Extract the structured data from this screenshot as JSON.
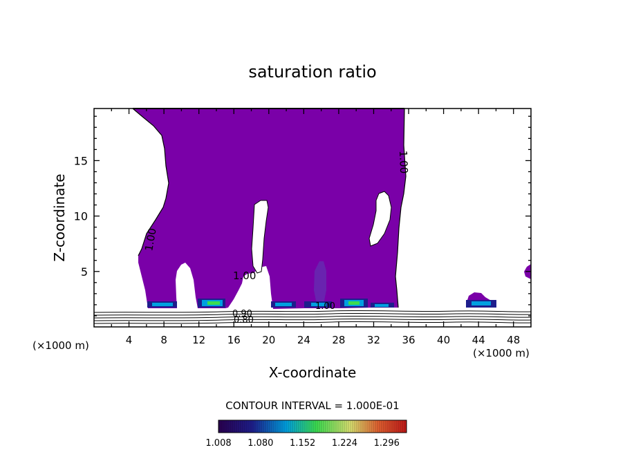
{
  "chart_data": {
    "type": "contour",
    "title": "saturation ratio",
    "xlabel": "X-coordinate",
    "ylabel": "Z-coordinate",
    "x_unit_left": "(×1000 m)",
    "x_unit_right": "(×1000 m)",
    "xlim": [
      0,
      50
    ],
    "ylim": [
      0,
      19.7
    ],
    "x_ticks": [
      4,
      8,
      12,
      16,
      20,
      24,
      28,
      32,
      36,
      40,
      44,
      48
    ],
    "y_ticks": [
      5,
      10,
      15
    ],
    "contour_interval_text": "CONTOUR INTERVAL = 1.000E-01",
    "contour_labels": [
      "1.00",
      "1.00",
      "1.00",
      "1.00",
      "0.90",
      "0.80"
    ],
    "colorbar": {
      "min": 1.008,
      "max": 1.33,
      "tick_labels": [
        "1.008",
        "1.080",
        "1.152",
        "1.224",
        "1.296"
      ]
    },
    "colors": {
      "fill": "#7a00a8",
      "low": "#1e1e8c",
      "mid": "#00a0e0",
      "high": "#3cdc50",
      "axis": "#000000"
    }
  }
}
